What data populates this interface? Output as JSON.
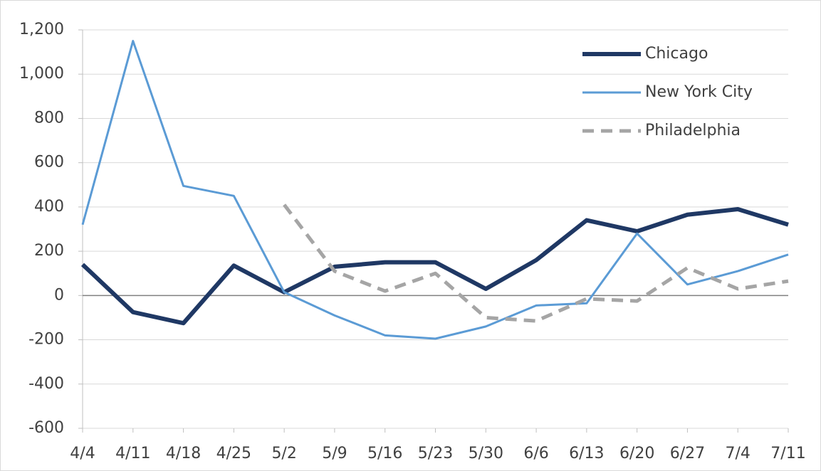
{
  "chart_data": {
    "type": "line",
    "categories": [
      "4/4",
      "4/11",
      "4/18",
      "4/25",
      "5/2",
      "5/9",
      "5/16",
      "5/23",
      "5/30",
      "6/6",
      "6/13",
      "6/20",
      "6/27",
      "7/4",
      "7/11"
    ],
    "series": [
      {
        "name": "Chicago",
        "color": "#1f3864",
        "width": 6,
        "dash": "none",
        "values": [
          140,
          -75,
          -125,
          135,
          15,
          130,
          150,
          150,
          30,
          160,
          340,
          290,
          365,
          390,
          320
        ]
      },
      {
        "name": "New York City",
        "color": "#5b9bd5",
        "width": 3,
        "dash": "none",
        "values": [
          320,
          1150,
          495,
          450,
          15,
          -90,
          -180,
          -195,
          -140,
          -45,
          -35,
          280,
          50,
          110,
          185
        ]
      },
      {
        "name": "Philadelphia",
        "color": "#a5a5a5",
        "width": 5,
        "dash": "16,10",
        "values": [
          null,
          null,
          null,
          null,
          410,
          110,
          20,
          100,
          -100,
          -115,
          -15,
          -25,
          125,
          30,
          65
        ]
      }
    ],
    "ylim": [
      -600,
      1200
    ],
    "yticks": [
      -600,
      -400,
      -200,
      0,
      200,
      400,
      600,
      800,
      {
        "value": 1000,
        "label": "1,000"
      },
      {
        "value": 1200,
        "label": "1,200"
      }
    ],
    "grid": true,
    "legend": "top-right"
  }
}
